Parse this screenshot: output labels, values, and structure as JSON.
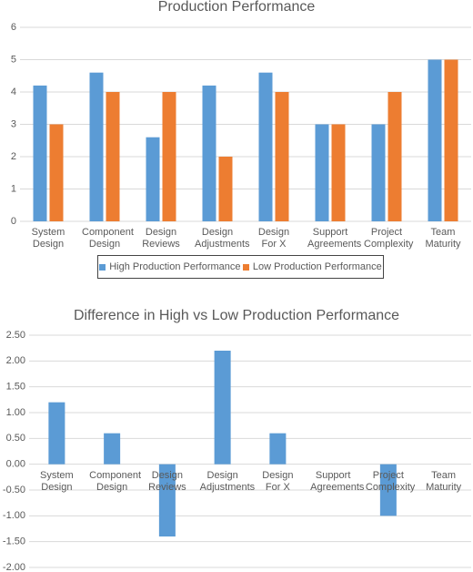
{
  "chart_data": [
    {
      "type": "bar",
      "title": "Production Performance",
      "categories": [
        "System Design",
        "Component Design",
        "Design Reviews",
        "Design Adjustments",
        "Design For X",
        "Support Agreements",
        "Project Complexity",
        "Team Maturity"
      ],
      "series": [
        {
          "name": "High Production Performance",
          "color": "#5b9bd5",
          "values": [
            4.2,
            4.6,
            2.6,
            4.2,
            4.6,
            3,
            3,
            5
          ]
        },
        {
          "name": "Low Production Performance",
          "color": "#ed7d31",
          "values": [
            3,
            4,
            4,
            2,
            4,
            3,
            4,
            5
          ]
        }
      ],
      "ylim": [
        0,
        6
      ],
      "yticks": [
        0,
        1,
        2,
        3,
        4,
        5,
        6
      ],
      "grid": true,
      "legend": "bottom"
    },
    {
      "type": "bar",
      "title": "Difference in High vs Low Production Performance",
      "categories": [
        "System Design",
        "Component Design",
        "Design Reviews",
        "Design Adjustments",
        "Design For X",
        "Support Agreements",
        "Project Complexity",
        "Team Maturity"
      ],
      "series": [
        {
          "color": "#5b9bd5",
          "values": [
            1.2,
            0.6,
            -1.4,
            2.2,
            0.6,
            0,
            -1,
            0
          ]
        }
      ],
      "ylim": [
        -2,
        2.5
      ],
      "yticks": [
        {
          "value": -2,
          "label": "-2.00"
        },
        {
          "value": -1.5,
          "label": "-1.50"
        },
        {
          "value": -1,
          "label": "-1.00"
        },
        {
          "value": -0.5,
          "label": "-0.50"
        },
        {
          "value": 0,
          "label": "0.00"
        },
        {
          "value": 0.5,
          "label": "0.50"
        },
        {
          "value": 1,
          "label": "1.00"
        },
        {
          "value": 1.5,
          "label": "1.50"
        },
        {
          "value": 2,
          "label": "2.00"
        },
        {
          "value": 2.5,
          "label": "2.50"
        }
      ],
      "grid": true
    }
  ]
}
